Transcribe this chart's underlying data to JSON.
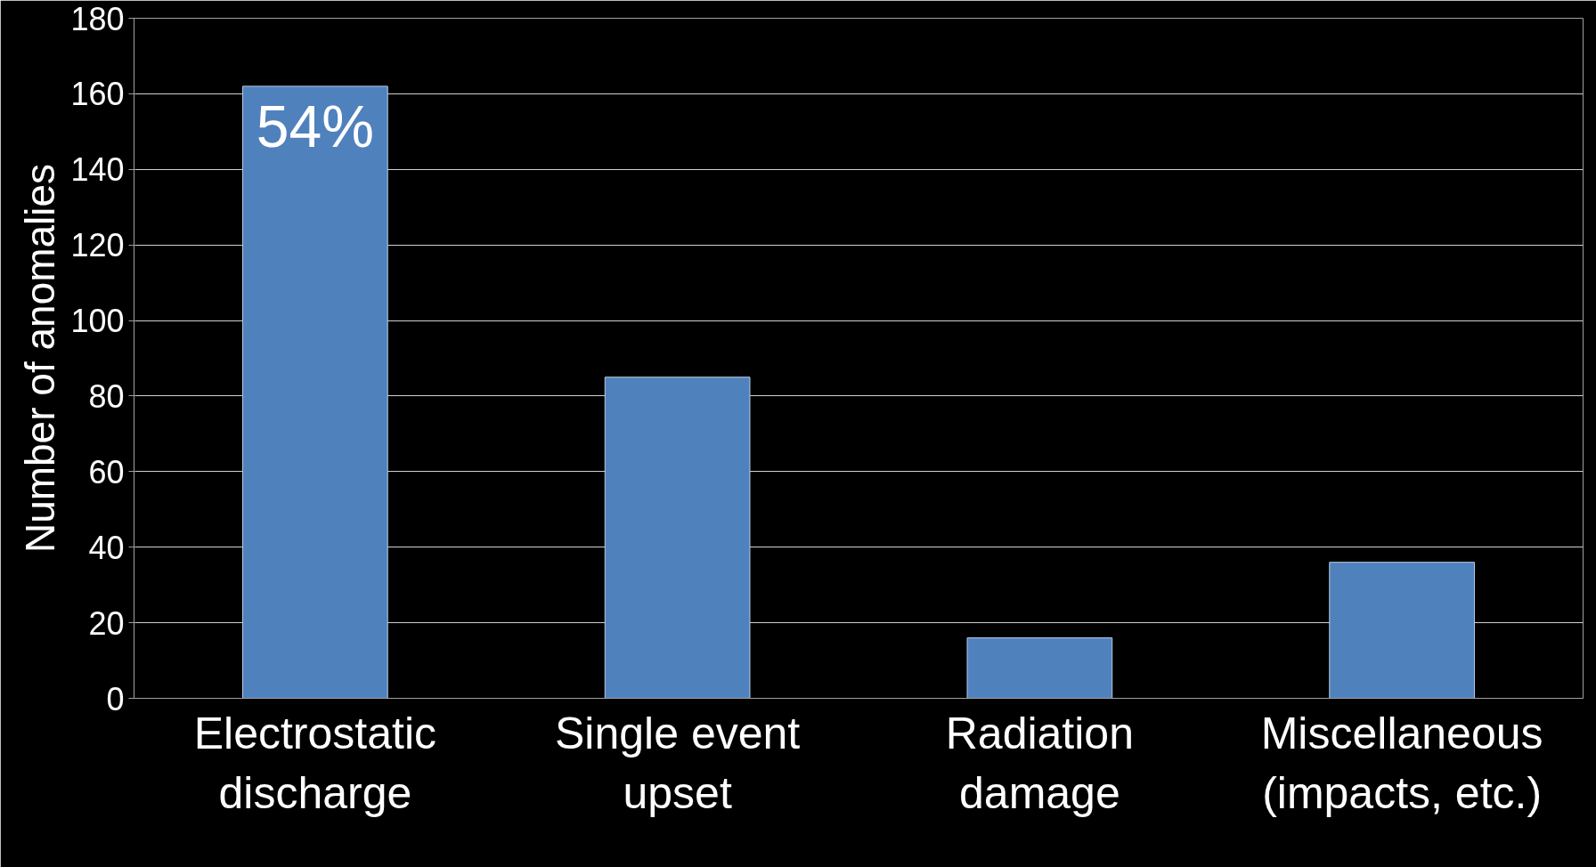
{
  "chart_data": {
    "type": "bar",
    "ylabel": "Number of anomalies",
    "categories": [
      "Electrostatic discharge",
      "Single event upset",
      "Radiation damage",
      "Miscellaneous (impacts, etc.)"
    ],
    "values": [
      162,
      85,
      16,
      36
    ],
    "color": "#4f81bd",
    "ylim": [
      0,
      180
    ],
    "yticks": [
      0,
      20,
      40,
      60,
      80,
      100,
      120,
      140,
      160,
      180
    ],
    "grid": "y",
    "annotations": [
      {
        "text": "54%",
        "x": "Electrostatic discharge",
        "y": 162
      }
    ]
  }
}
